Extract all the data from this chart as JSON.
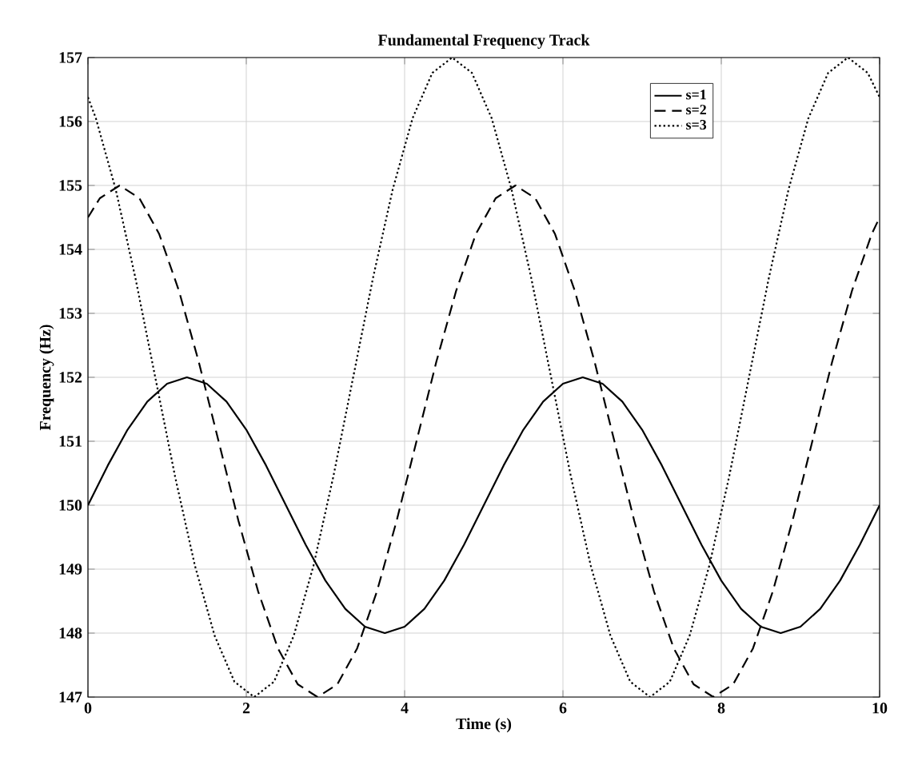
{
  "chart_data": {
    "type": "line",
    "title": "Fundamental Frequency Track",
    "xlabel": "Time (s)",
    "ylabel": "Frequency (Hz)",
    "xlim": [
      0,
      10
    ],
    "ylim": [
      147,
      157
    ],
    "xticks": [
      0,
      2,
      4,
      6,
      8,
      10
    ],
    "yticks": [
      147,
      148,
      149,
      150,
      151,
      152,
      153,
      154,
      155,
      156,
      157
    ],
    "grid": true,
    "legend": "top right",
    "marker": "none",
    "series": [
      {
        "name": "s=1",
        "color": "#000000",
        "line_style": "solid",
        "x": [
          0,
          0.25,
          0.5,
          0.75,
          1,
          1.25,
          1.5,
          1.75,
          2,
          2.25,
          2.5,
          2.75,
          3,
          3.25,
          3.5,
          3.75,
          4,
          4.25,
          4.5,
          4.75,
          5,
          5.25,
          5.5,
          5.75,
          6,
          6.25,
          6.5,
          6.75,
          7,
          7.25,
          7.5,
          7.75,
          8,
          8.25,
          8.5,
          8.75,
          9,
          9.25,
          9.5,
          9.75,
          10
        ],
        "values": [
          150,
          150.62,
          151.18,
          151.62,
          151.9,
          152,
          151.9,
          151.62,
          151.18,
          150.62,
          150,
          149.38,
          148.82,
          148.38,
          148.1,
          148,
          148.1,
          148.38,
          148.82,
          149.38,
          150,
          150.62,
          151.18,
          151.62,
          151.9,
          152,
          151.9,
          151.62,
          151.18,
          150.62,
          150,
          149.38,
          148.82,
          148.38,
          148.1,
          148,
          148.1,
          148.38,
          148.82,
          149.38,
          150
        ]
      },
      {
        "name": "s=2",
        "color": "#000000",
        "line_style": "dashed",
        "x": [
          0,
          0.15,
          0.4,
          0.65,
          0.9,
          1.15,
          1.4,
          1.65,
          1.9,
          2.15,
          2.4,
          2.65,
          2.9,
          3.15,
          3.4,
          3.65,
          3.9,
          4.15,
          4.4,
          4.65,
          4.9,
          5.15,
          5.4,
          5.65,
          5.9,
          6.15,
          6.4,
          6.65,
          6.9,
          7.15,
          7.4,
          7.65,
          7.9,
          8.15,
          8.4,
          8.65,
          8.9,
          9.15,
          9.4,
          9.65,
          9.9,
          10
        ],
        "values": [
          154.5,
          154.8,
          155,
          154.8,
          154.24,
          153.35,
          152.24,
          151,
          149.76,
          148.65,
          147.76,
          147.2,
          147,
          147.2,
          147.76,
          148.65,
          149.76,
          151,
          152.24,
          153.35,
          154.24,
          154.8,
          155,
          154.8,
          154.24,
          153.35,
          152.24,
          151,
          149.76,
          148.65,
          147.76,
          147.2,
          147,
          147.2,
          147.76,
          148.65,
          149.76,
          151,
          152.24,
          153.35,
          154.24,
          154.5
        ]
      },
      {
        "name": "s=3",
        "color": "#000000",
        "line_style": "dotted",
        "x": [
          0,
          0.1,
          0.35,
          0.6,
          0.85,
          1.1,
          1.35,
          1.6,
          1.85,
          2.1,
          2.35,
          2.6,
          2.85,
          3.1,
          3.35,
          3.6,
          3.85,
          4.1,
          4.35,
          4.6,
          4.85,
          5.1,
          5.35,
          5.6,
          5.85,
          6.1,
          6.35,
          6.6,
          6.85,
          7.1,
          7.35,
          7.6,
          7.85,
          8.1,
          8.35,
          8.6,
          8.85,
          9.1,
          9.35,
          9.6,
          9.85,
          10
        ],
        "values": [
          156.38,
          156.05,
          154.94,
          153.55,
          152,
          150.45,
          149.06,
          147.96,
          147.24,
          147,
          147.24,
          147.96,
          149.06,
          150.45,
          152,
          153.55,
          154.94,
          156.05,
          156.76,
          157,
          156.76,
          156.05,
          154.94,
          153.55,
          152,
          150.45,
          149.06,
          147.96,
          147.24,
          147,
          147.24,
          147.96,
          149.06,
          150.45,
          152,
          153.55,
          154.94,
          156.05,
          156.76,
          157,
          156.76,
          156.38
        ]
      }
    ]
  }
}
